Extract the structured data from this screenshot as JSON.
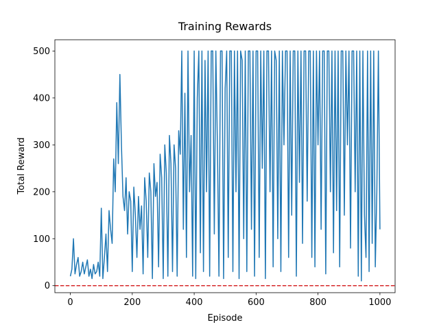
{
  "chart_data": {
    "type": "line",
    "title": "Training Rewards",
    "x_label": "Episode",
    "y_label": "Total Reward",
    "x": [
      0,
      5,
      10,
      15,
      20,
      25,
      30,
      35,
      40,
      45,
      50,
      55,
      60,
      65,
      70,
      75,
      80,
      85,
      90,
      95,
      100,
      105,
      110,
      115,
      120,
      125,
      130,
      135,
      140,
      145,
      150,
      155,
      160,
      165,
      170,
      175,
      180,
      185,
      190,
      195,
      200,
      205,
      210,
      215,
      220,
      225,
      230,
      235,
      240,
      245,
      250,
      255,
      260,
      265,
      270,
      275,
      280,
      285,
      290,
      295,
      300,
      305,
      310,
      315,
      320,
      325,
      330,
      335,
      340,
      345,
      350,
      355,
      360,
      365,
      370,
      375,
      380,
      385,
      390,
      395,
      400,
      405,
      410,
      415,
      420,
      425,
      430,
      435,
      440,
      445,
      450,
      455,
      460,
      465,
      470,
      475,
      480,
      485,
      490,
      495,
      500,
      505,
      510,
      515,
      520,
      525,
      530,
      535,
      540,
      545,
      550,
      555,
      560,
      565,
      570,
      575,
      580,
      585,
      590,
      595,
      600,
      605,
      610,
      615,
      620,
      625,
      630,
      635,
      640,
      645,
      650,
      655,
      660,
      665,
      670,
      675,
      680,
      685,
      690,
      695,
      700,
      705,
      710,
      715,
      720,
      725,
      730,
      735,
      740,
      745,
      750,
      755,
      760,
      765,
      770,
      775,
      780,
      785,
      790,
      795,
      800,
      805,
      810,
      815,
      820,
      825,
      830,
      835,
      840,
      845,
      850,
      855,
      860,
      865,
      870,
      875,
      880,
      885,
      890,
      895,
      900,
      905,
      910,
      915,
      920,
      925,
      930,
      935,
      940,
      945,
      950,
      955,
      960,
      965,
      970,
      975,
      980,
      985,
      990,
      995,
      1000
    ],
    "values": [
      20,
      35,
      100,
      25,
      45,
      60,
      20,
      30,
      50,
      25,
      40,
      55,
      20,
      35,
      15,
      45,
      25,
      30,
      50,
      20,
      165,
      15,
      60,
      110,
      30,
      160,
      120,
      90,
      270,
      200,
      390,
      260,
      450,
      300,
      190,
      160,
      230,
      110,
      200,
      180,
      30,
      210,
      150,
      60,
      190,
      120,
      170,
      25,
      230,
      180,
      60,
      240,
      200,
      15,
      260,
      190,
      220,
      40,
      280,
      230,
      15,
      300,
      240,
      20,
      320,
      260,
      30,
      300,
      250,
      20,
      330,
      280,
      500,
      120,
      410,
      60,
      500,
      200,
      320,
      20,
      500,
      15,
      400,
      500,
      70,
      500,
      30,
      480,
      200,
      500,
      20,
      500,
      500,
      110,
      500,
      300,
      20,
      500,
      500,
      15,
      420,
      500,
      60,
      500,
      500,
      30,
      500,
      200,
      500,
      15,
      500,
      480,
      100,
      500,
      30,
      500,
      500,
      120,
      500,
      20,
      500,
      500,
      60,
      500,
      250,
      500,
      15,
      500,
      500,
      200,
      500,
      40,
      500,
      480,
      100,
      500,
      30,
      500,
      300,
      500,
      500,
      60,
      500,
      150,
      500,
      500,
      20,
      500,
      220,
      500,
      90,
      500,
      500,
      180,
      500,
      500,
      60,
      500,
      40,
      500,
      300,
      500,
      120,
      500,
      500,
      25,
      500,
      500,
      200,
      500,
      70,
      500,
      160,
      500,
      40,
      500,
      500,
      150,
      500,
      300,
      500,
      80,
      500,
      500,
      200,
      500,
      20,
      500,
      10,
      500,
      150,
      60,
      500,
      30,
      500,
      90,
      500,
      40,
      200,
      500,
      120
    ],
    "color": "#1f77b4",
    "hline": {
      "y": 0,
      "color": "#d62728",
      "style": "dashed"
    },
    "xlim": [
      -50,
      1049
    ],
    "xticks": [
      0,
      200,
      400,
      600,
      800,
      1000
    ],
    "ylim": [
      -15,
      524
    ],
    "yticks": [
      0,
      100,
      200,
      300,
      400,
      500
    ]
  }
}
